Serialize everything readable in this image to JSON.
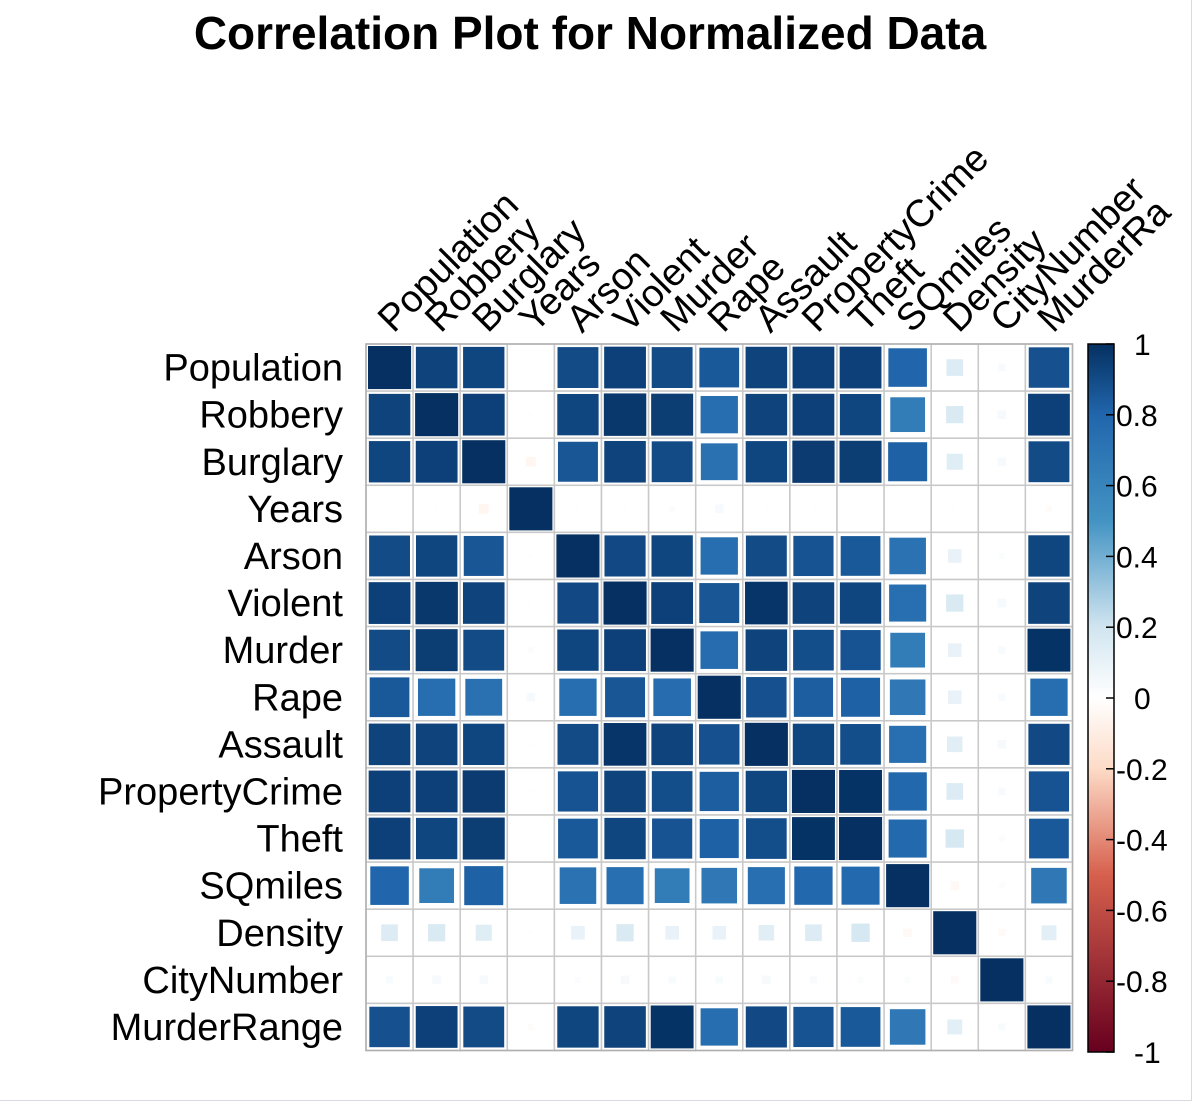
{
  "chart_data": {
    "type": "heatmap",
    "title": "Correlation Plot for Normalized Data",
    "variables": [
      "Population",
      "Robbery",
      "Burglary",
      "Years",
      "Arson",
      "Violent",
      "Murder",
      "Rape",
      "Assault",
      "PropertyCrime",
      "Theft",
      "SQmiles",
      "Density",
      "CityNumber",
      "MurderRange"
    ],
    "column_labels": [
      "Population",
      "Robbery",
      "Burglary",
      "Years",
      "Arson",
      "Violent",
      "Murder",
      "Rape",
      "Assault",
      "PropertyCrime",
      "Theft",
      "SQmiles",
      "Density",
      "CityNumber",
      "MurderRa"
    ],
    "matrix": [
      [
        1.0,
        0.93,
        0.92,
        0.0,
        0.9,
        0.94,
        0.9,
        0.85,
        0.93,
        0.94,
        0.94,
        0.8,
        0.15,
        0.03,
        0.88
      ],
      [
        0.93,
        1.0,
        0.94,
        0.01,
        0.92,
        0.97,
        0.95,
        0.75,
        0.93,
        0.94,
        0.92,
        0.65,
        0.16,
        0.04,
        0.94
      ],
      [
        0.92,
        0.94,
        1.0,
        -0.05,
        0.86,
        0.93,
        0.9,
        0.73,
        0.92,
        0.96,
        0.95,
        0.82,
        0.14,
        0.04,
        0.9
      ],
      [
        0.0,
        0.01,
        -0.05,
        1.0,
        0.01,
        0.01,
        0.02,
        0.04,
        0.01,
        0.01,
        0.0,
        0.0,
        0.01,
        0.0,
        -0.02
      ],
      [
        0.9,
        0.92,
        0.86,
        0.01,
        1.0,
        0.91,
        0.92,
        0.75,
        0.9,
        0.87,
        0.85,
        0.72,
        0.1,
        0.02,
        0.92
      ],
      [
        0.94,
        0.97,
        0.93,
        0.01,
        0.91,
        1.0,
        0.94,
        0.86,
        0.98,
        0.93,
        0.92,
        0.74,
        0.16,
        0.04,
        0.93
      ],
      [
        0.9,
        0.95,
        0.9,
        0.02,
        0.92,
        0.94,
        1.0,
        0.76,
        0.93,
        0.89,
        0.87,
        0.65,
        0.1,
        0.03,
        0.99
      ],
      [
        0.85,
        0.75,
        0.73,
        0.04,
        0.75,
        0.86,
        0.76,
        1.0,
        0.88,
        0.83,
        0.82,
        0.68,
        0.1,
        0.03,
        0.75
      ],
      [
        0.93,
        0.93,
        0.92,
        0.01,
        0.9,
        0.98,
        0.93,
        0.88,
        1.0,
        0.92,
        0.89,
        0.74,
        0.13,
        0.04,
        0.91
      ],
      [
        0.94,
        0.94,
        0.96,
        0.01,
        0.87,
        0.93,
        0.89,
        0.83,
        0.92,
        1.0,
        0.99,
        0.79,
        0.15,
        0.03,
        0.87
      ],
      [
        0.94,
        0.92,
        0.95,
        0.0,
        0.85,
        0.92,
        0.87,
        0.82,
        0.89,
        0.99,
        1.0,
        0.78,
        0.18,
        0.02,
        0.85
      ],
      [
        0.8,
        0.65,
        0.82,
        0.0,
        0.72,
        0.74,
        0.65,
        0.68,
        0.74,
        0.79,
        0.78,
        1.0,
        -0.04,
        0.02,
        0.68
      ],
      [
        0.15,
        0.16,
        0.14,
        0.01,
        0.1,
        0.16,
        0.1,
        0.1,
        0.13,
        0.15,
        0.18,
        -0.04,
        1.0,
        -0.03,
        0.12
      ],
      [
        0.03,
        0.04,
        0.04,
        0.0,
        0.02,
        0.04,
        0.03,
        0.03,
        0.04,
        0.03,
        0.02,
        0.02,
        -0.03,
        1.0,
        0.03
      ],
      [
        0.88,
        0.94,
        0.9,
        -0.02,
        0.92,
        0.93,
        0.99,
        0.75,
        0.91,
        0.87,
        0.85,
        0.68,
        0.12,
        0.03,
        1.0
      ]
    ],
    "colorbar": {
      "range": [
        -1,
        1
      ],
      "tick_labels": [
        "1",
        "0.8",
        "0.6",
        "0.4",
        "0.2",
        "0",
        "-0.2",
        "-0.4",
        "-0.6",
        "-0.8",
        "-1"
      ],
      "tick_values": [
        1,
        0.8,
        0.6,
        0.4,
        0.2,
        0,
        -0.2,
        -0.4,
        -0.6,
        -0.8,
        -1
      ],
      "colors": {
        "neg1": "#67001f",
        "neg05": "#d6604d",
        "neg02": "#fddbc7",
        "zero": "#ffffff",
        "pos02": "#d1e5f0",
        "pos05": "#4393c3",
        "pos08": "#2166ac",
        "pos1": "#053061"
      }
    }
  }
}
